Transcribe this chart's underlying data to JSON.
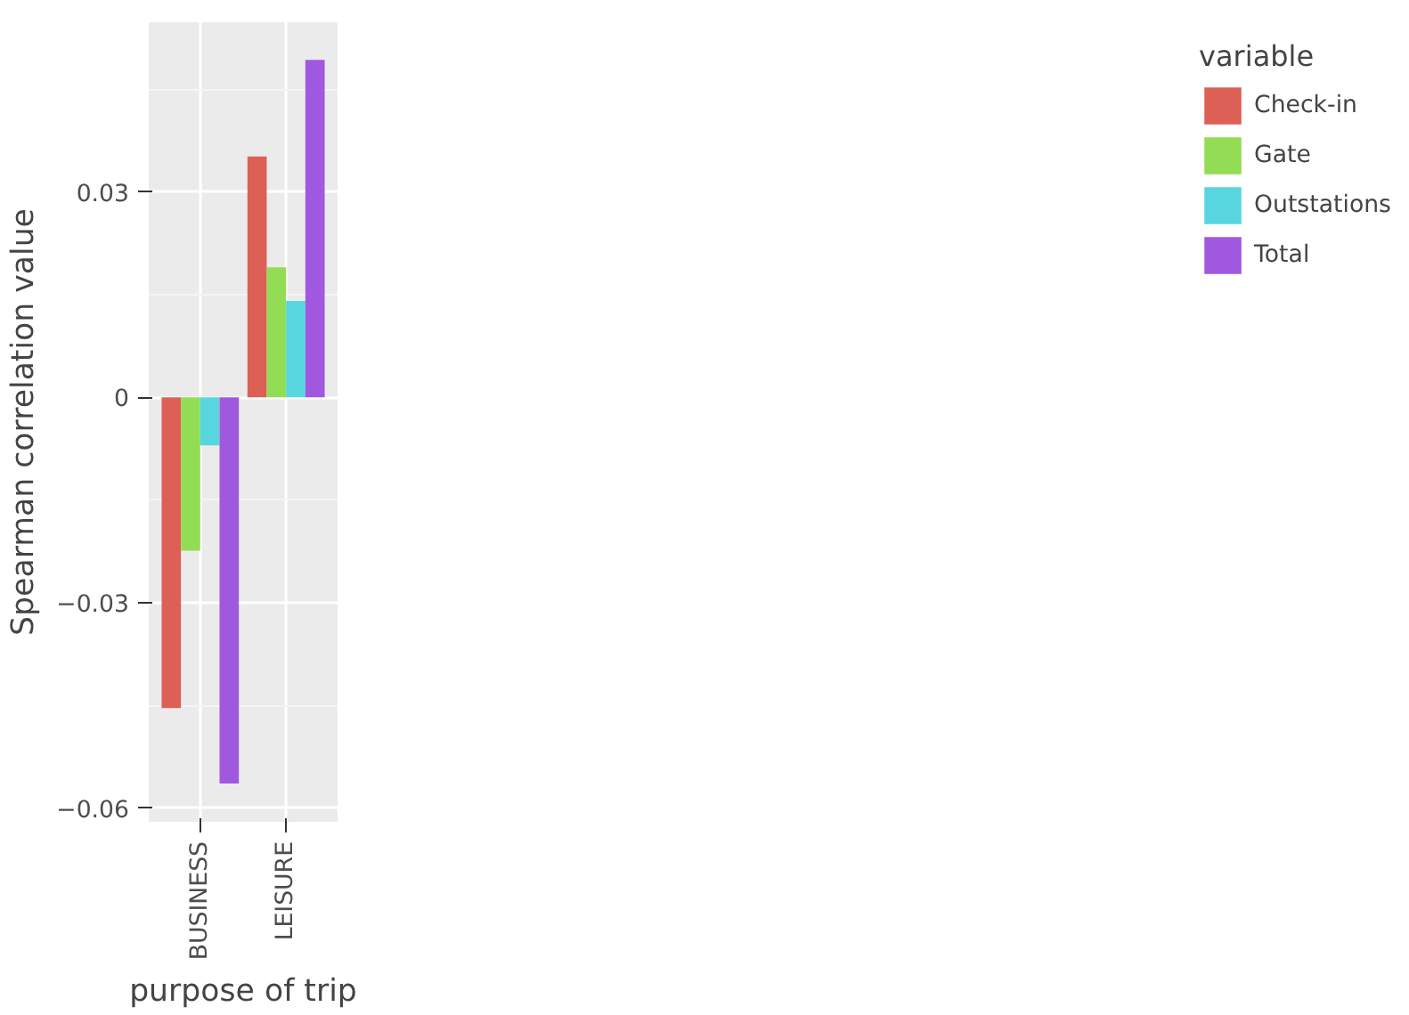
{
  "chart_data": {
    "type": "bar",
    "xlabel": "purpose of trip",
    "ylabel": "Spearman correlation value",
    "legend_title": "variable",
    "categories": [
      "BUSINESS",
      "LEISURE"
    ],
    "series": [
      {
        "name": "Check-in",
        "color": "#dd6057",
        "values": [
          -0.0454,
          0.0352
        ]
      },
      {
        "name": "Gate",
        "color": "#93dd55",
        "values": [
          -0.0224,
          0.019
        ]
      },
      {
        "name": "Outstations",
        "color": "#57d6df",
        "values": [
          -0.007,
          0.0141
        ]
      },
      {
        "name": "Total",
        "color": "#a058df",
        "values": [
          -0.0564,
          0.0493
        ]
      }
    ],
    "ylim": [
      -0.062,
      0.0548
    ],
    "yticks": [
      {
        "value": -0.06,
        "label": "−0.06"
      },
      {
        "value": -0.03,
        "label": "−0.03"
      },
      0,
      0.03
    ],
    "grid": true,
    "legend": "right"
  }
}
